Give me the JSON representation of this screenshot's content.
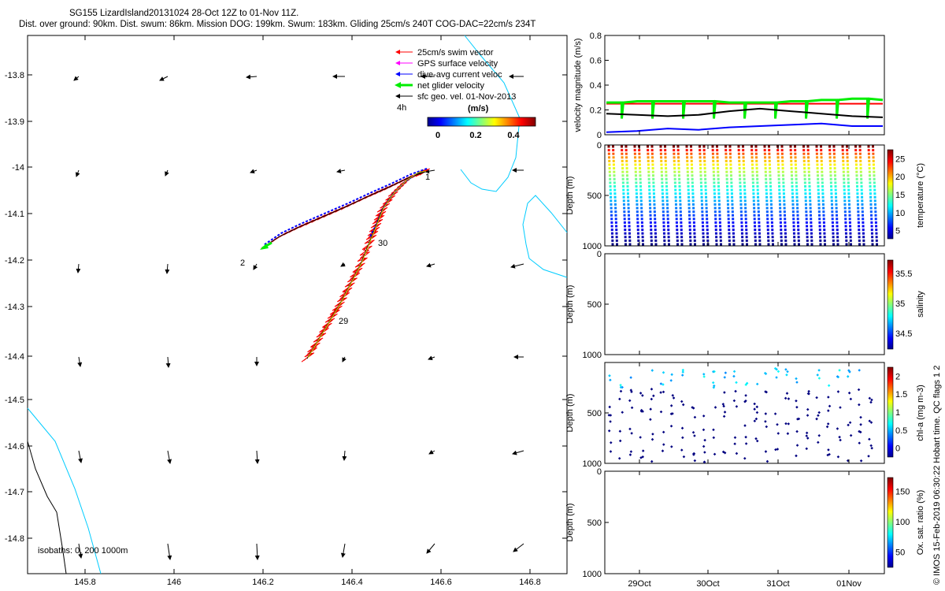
{
  "header": {
    "line1": "SG155 LizardIsland20131024 28-Oct 12Z to 01-Nov 11Z.",
    "line2": "Dist. over ground: 90km. Dist. swum: 86km. Mission DOG: 199km. Swum: 183km. Gliding 25cm/s 240T COG-DAC=22cm/s 234T"
  },
  "credit": "© IMOS 15-Feb-2019 06:30:22 Hobart time. QC flags 1  2",
  "colors": {
    "swim_vector": "#ff0000",
    "gps_surface": "#ff00ff",
    "dive_avg": "#0000ff",
    "net_glider": "#00ee00",
    "geo_vel": "#000000",
    "isobath_0": "#00ccff",
    "isobath_200": "#000000"
  },
  "map": {
    "xticks": [
      "145.8",
      "146",
      "146.2",
      "146.4",
      "146.6",
      "146.8"
    ],
    "yticks": [
      "-13.8",
      "-13.9",
      "-14",
      "-14.1",
      "-14.2",
      "-14.3",
      "-14.4",
      "-14.5",
      "-14.6",
      "-14.7",
      "-14.8"
    ],
    "legend": [
      {
        "label": "25cm/s swim vector",
        "color": "#ff0000"
      },
      {
        "label": "GPS surface velocity",
        "color": "#ff00ff"
      },
      {
        "label": "dive-avg current veloc",
        "color": "#0000ff"
      },
      {
        "label": "net glider velocity",
        "color": "#00ee00"
      },
      {
        "label": "sfc geo. vel. 01-Nov-2013",
        "color": "#000000"
      }
    ],
    "scale_label": "4h",
    "colorbar_title": "(m/s)",
    "colorbar_ticks": [
      "0",
      "0.2",
      "0.4"
    ],
    "day_labels": [
      "1",
      "30",
      "29",
      "2"
    ],
    "isobath_label": "isobaths: 0, 200  1000m"
  },
  "chart_data": [
    {
      "type": "line",
      "panel": "velocity",
      "ylabel": "velocity magnitude (m/s)",
      "ylim": [
        0,
        0.8
      ],
      "yticks": [
        "0",
        "0.2",
        "0.4",
        "0.6",
        "0.8"
      ],
      "series": [
        {
          "color": "#ff0000",
          "values": [
            0.25,
            0.25,
            0.25,
            0.25,
            0.25,
            0.25,
            0.25,
            0.25,
            0.25,
            0.25
          ]
        },
        {
          "color": "#00ee00",
          "values": [
            0.26,
            0.27,
            0.27,
            0.27,
            0.26,
            0.26,
            0.27,
            0.28,
            0.29,
            0.28
          ]
        },
        {
          "color": "#000000",
          "values": [
            0.17,
            0.16,
            0.15,
            0.16,
            0.19,
            0.21,
            0.19,
            0.17,
            0.15,
            0.14
          ]
        },
        {
          "color": "#0000ff",
          "values": [
            0.02,
            0.03,
            0.05,
            0.04,
            0.06,
            0.07,
            0.08,
            0.09,
            0.07,
            0.07
          ]
        }
      ]
    },
    {
      "type": "scatter",
      "panel": "temperature",
      "ylabel": "Depth (m)",
      "ylim": [
        0,
        1000
      ],
      "yticks": [
        "0",
        "500",
        "1000"
      ],
      "colorbar_label": "temperature (°C)",
      "colorbar_ticks": [
        "5",
        "10",
        "15",
        "20",
        "25"
      ],
      "profiles": 21
    },
    {
      "type": "scatter",
      "panel": "salinity",
      "ylabel": "Depth (m)",
      "ylim": [
        0,
        1000
      ],
      "yticks": [
        "0",
        "500",
        "1000"
      ],
      "colorbar_label": "salinity",
      "colorbar_ticks": [
        "34.5",
        "35",
        "35.5"
      ]
    },
    {
      "type": "scatter",
      "panel": "chl-a",
      "ylabel": "Depth (m)",
      "ylim": [
        0,
        1000
      ],
      "yticks": [
        "",
        "500",
        "1000"
      ],
      "colorbar_label": "chl-a (mg m-3)",
      "colorbar_ticks": [
        "0",
        "0.5",
        "1",
        "1.5",
        "2"
      ]
    },
    {
      "type": "scatter",
      "panel": "oxygen",
      "ylabel": "Depth (m)",
      "ylim": [
        0,
        1000
      ],
      "yticks": [
        "0",
        "500",
        "1000"
      ],
      "colorbar_label": "Ox. sat. ratio (%)",
      "colorbar_ticks": [
        "50",
        "100",
        "150"
      ],
      "xticks": [
        "29Oct",
        "30Oct",
        "31Oct",
        "01Nov"
      ]
    }
  ]
}
